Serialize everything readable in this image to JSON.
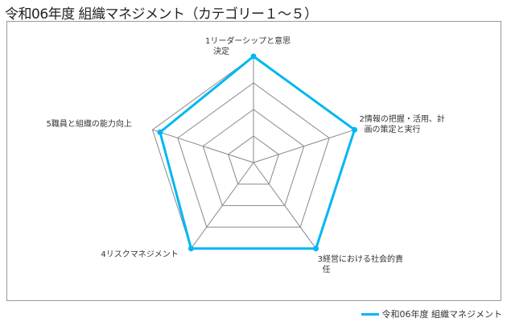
{
  "chart_data": {
    "type": "radar",
    "title": "令和06年度 組織マネジメント（カテゴリー１～５）",
    "categories": [
      [
        "1リーダーシップと意思",
        "決定"
      ],
      [
        "2情報の把握・活用、計",
        "画の策定と実行"
      ],
      [
        "3経営における社会的責",
        "任"
      ],
      [
        "4リスクマネジメント"
      ],
      [
        "5職員と組織の能力向上"
      ]
    ],
    "series": [
      {
        "name": "令和06年度 組織マネジメント",
        "values": [
          4,
          4,
          4,
          4,
          3.7
        ],
        "color": "#00b7f1"
      }
    ],
    "rlim": [
      0,
      4
    ],
    "rings": 4,
    "grid": true,
    "legend": "bottom-right"
  }
}
